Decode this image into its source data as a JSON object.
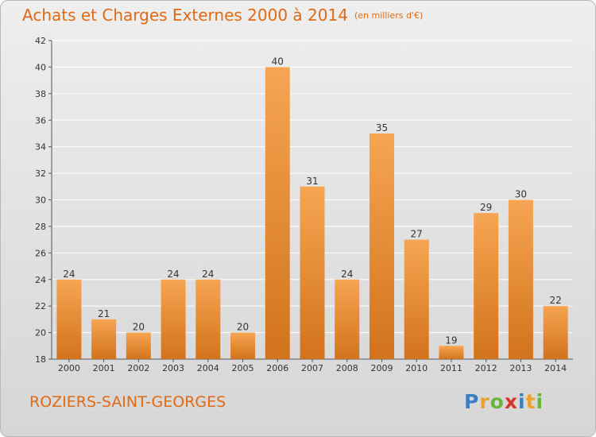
{
  "header": {
    "title": "Achats et Charges Externes 2000 à 2014",
    "subtitle": "(en milliers d'€)"
  },
  "footer": {
    "commune": "ROZIERS-SAINT-GEORGES",
    "logo_letters": [
      "P",
      "r",
      "o",
      "x",
      "i",
      "t",
      "i"
    ],
    "logo_colors": [
      "#3a7fc4",
      "#e9a32b",
      "#6bb43a",
      "#d8332d",
      "#3a7fc4",
      "#e9a32b",
      "#6bb43a"
    ]
  },
  "chart_data": {
    "type": "bar",
    "categories": [
      "2000",
      "2001",
      "2002",
      "2003",
      "2004",
      "2005",
      "2006",
      "2007",
      "2008",
      "2009",
      "2010",
      "2011",
      "2012",
      "2013",
      "2014"
    ],
    "values": [
      24,
      21,
      20,
      24,
      24,
      20,
      40,
      31,
      24,
      35,
      27,
      19,
      29,
      30,
      22
    ],
    "yticks": [
      18,
      20,
      22,
      24,
      26,
      28,
      30,
      32,
      34,
      36,
      38,
      40,
      42
    ],
    "ylim": [
      18,
      42
    ],
    "grid": true,
    "bar_color_light": "#f6a552",
    "bar_color_dark": "#d2731c",
    "grid_color": "#ffffff"
  }
}
